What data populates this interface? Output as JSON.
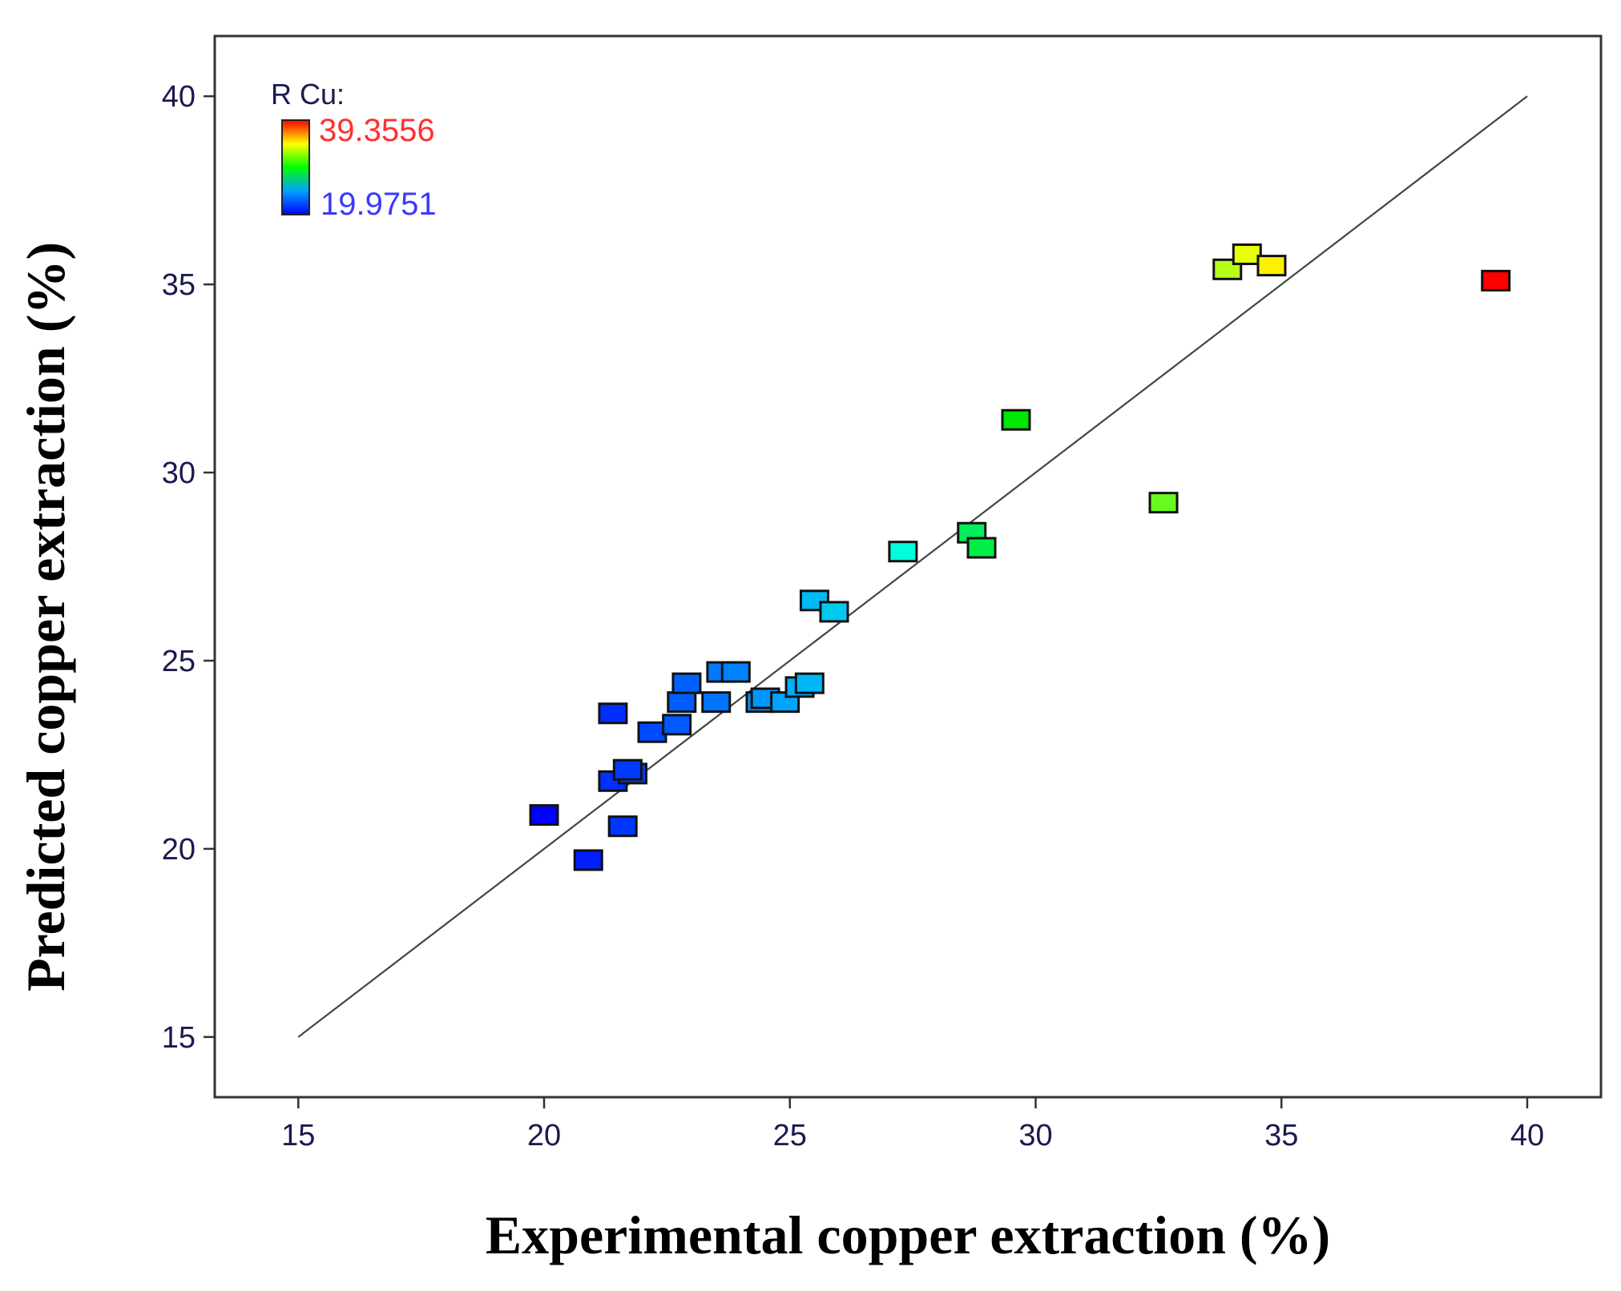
{
  "chart_data": {
    "type": "scatter",
    "title": "",
    "xlabel": "Experimental copper extraction (%)",
    "ylabel": "Predicted copper extraction (%)",
    "xlim": [
      13.3,
      41.5
    ],
    "ylim": [
      13.4,
      41.6
    ],
    "xticks": [
      "15",
      "20",
      "25",
      "30",
      "35",
      "40"
    ],
    "yticks": [
      "15",
      "20",
      "25",
      "30",
      "35",
      "40"
    ],
    "reference_line": {
      "from": [
        15,
        15
      ],
      "to": [
        40,
        40
      ]
    },
    "legend": {
      "title": "R Cu:",
      "max_label": "39.3556",
      "min_label": "19.9751",
      "max_value": 39.3556,
      "min_value": 19.9751,
      "placement": "top-left"
    },
    "points": [
      {
        "x": 20.0,
        "y": 20.9
      },
      {
        "x": 20.9,
        "y": 19.7
      },
      {
        "x": 21.4,
        "y": 23.6
      },
      {
        "x": 21.4,
        "y": 21.8
      },
      {
        "x": 21.6,
        "y": 20.6
      },
      {
        "x": 21.8,
        "y": 22.0
      },
      {
        "x": 21.7,
        "y": 22.1
      },
      {
        "x": 22.2,
        "y": 23.1
      },
      {
        "x": 22.7,
        "y": 23.3
      },
      {
        "x": 22.8,
        "y": 23.9
      },
      {
        "x": 22.9,
        "y": 24.4
      },
      {
        "x": 23.5,
        "y": 23.9
      },
      {
        "x": 23.6,
        "y": 24.7
      },
      {
        "x": 23.9,
        "y": 24.7
      },
      {
        "x": 24.4,
        "y": 23.9
      },
      {
        "x": 24.5,
        "y": 24.0
      },
      {
        "x": 24.9,
        "y": 23.9
      },
      {
        "x": 25.2,
        "y": 24.3
      },
      {
        "x": 25.4,
        "y": 24.4
      },
      {
        "x": 25.5,
        "y": 26.6
      },
      {
        "x": 25.9,
        "y": 26.3
      },
      {
        "x": 27.3,
        "y": 27.9
      },
      {
        "x": 28.7,
        "y": 28.4
      },
      {
        "x": 28.9,
        "y": 28.0
      },
      {
        "x": 29.6,
        "y": 31.4
      },
      {
        "x": 32.6,
        "y": 29.2
      },
      {
        "x": 33.9,
        "y": 35.4
      },
      {
        "x": 34.3,
        "y": 35.8
      },
      {
        "x": 34.8,
        "y": 35.5
      },
      {
        "x": 39.36,
        "y": 35.1
      }
    ]
  }
}
